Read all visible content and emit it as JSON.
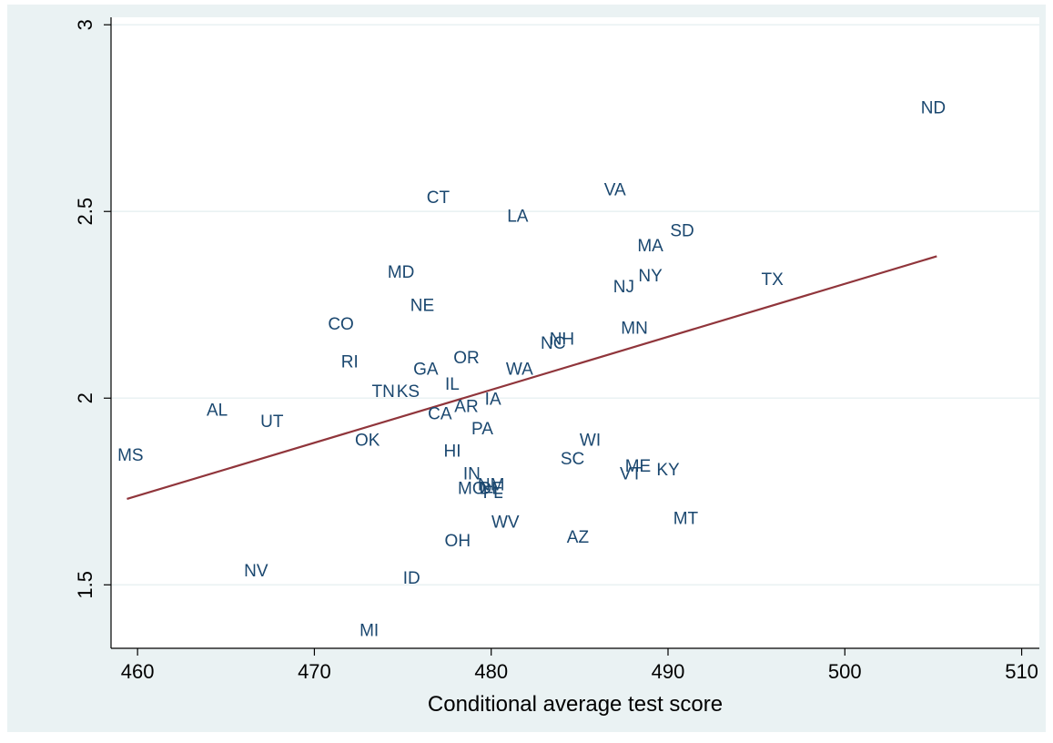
{
  "chart_data": {
    "type": "scatter",
    "title": "",
    "xlabel": "Conditional average test score",
    "ylabel": "",
    "xlim": [
      458.5,
      511
    ],
    "ylim": [
      1.33,
      3.02
    ],
    "xticks": [
      460,
      470,
      480,
      490,
      500,
      510
    ],
    "yticks": [
      1.5,
      2,
      2.5,
      3
    ],
    "xtick_labels": [
      "460",
      "470",
      "480",
      "490",
      "500",
      "510"
    ],
    "ytick_labels": [
      "1.5",
      "2",
      "2.5",
      "3"
    ],
    "grid": "horizontal",
    "colors": {
      "outer_background": "#eaf2f3",
      "plot_background": "#ffffff",
      "gridline": "#eaf2f3",
      "marker_label": "#1a476f",
      "fit_line": "#90353b"
    },
    "points": [
      {
        "label": "ND",
        "x": 505.0,
        "y": 2.78
      },
      {
        "label": "VA",
        "x": 487.0,
        "y": 2.56
      },
      {
        "label": "CT",
        "x": 477.0,
        "y": 2.54
      },
      {
        "label": "LA",
        "x": 481.5,
        "y": 2.49
      },
      {
        "label": "SD",
        "x": 490.8,
        "y": 2.45
      },
      {
        "label": "MA",
        "x": 489.0,
        "y": 2.41
      },
      {
        "label": "MD",
        "x": 474.9,
        "y": 2.34
      },
      {
        "label": "NY",
        "x": 489.0,
        "y": 2.33
      },
      {
        "label": "TX",
        "x": 495.9,
        "y": 2.32
      },
      {
        "label": "NJ",
        "x": 487.5,
        "y": 2.3
      },
      {
        "label": "NE",
        "x": 476.1,
        "y": 2.25
      },
      {
        "label": "CO",
        "x": 471.5,
        "y": 2.2
      },
      {
        "label": "MN",
        "x": 488.1,
        "y": 2.19
      },
      {
        "label": "NH",
        "x": 484.0,
        "y": 2.16
      },
      {
        "label": "NC",
        "x": 483.5,
        "y": 2.15
      },
      {
        "label": "OR",
        "x": 478.6,
        "y": 2.11
      },
      {
        "label": "RI",
        "x": 472.0,
        "y": 2.1
      },
      {
        "label": "GA",
        "x": 476.3,
        "y": 2.08
      },
      {
        "label": "WA",
        "x": 481.6,
        "y": 2.08
      },
      {
        "label": "IL",
        "x": 477.8,
        "y": 2.04
      },
      {
        "label": "TN",
        "x": 473.9,
        "y": 2.02
      },
      {
        "label": "KS",
        "x": 475.3,
        "y": 2.02
      },
      {
        "label": "IA",
        "x": 480.1,
        "y": 2.0
      },
      {
        "label": "AR",
        "x": 478.6,
        "y": 1.98
      },
      {
        "label": "AL",
        "x": 464.5,
        "y": 1.97
      },
      {
        "label": "CA",
        "x": 477.1,
        "y": 1.96
      },
      {
        "label": "UT",
        "x": 467.6,
        "y": 1.94
      },
      {
        "label": "PA",
        "x": 479.5,
        "y": 1.92
      },
      {
        "label": "WI",
        "x": 485.6,
        "y": 1.89
      },
      {
        "label": "OK",
        "x": 473.0,
        "y": 1.89
      },
      {
        "label": "HI",
        "x": 477.8,
        "y": 1.86
      },
      {
        "label": "MS",
        "x": 459.6,
        "y": 1.85
      },
      {
        "label": "SC",
        "x": 484.6,
        "y": 1.84
      },
      {
        "label": "ME",
        "x": 488.3,
        "y": 1.82
      },
      {
        "label": "KY",
        "x": 490.0,
        "y": 1.81
      },
      {
        "label": "VT",
        "x": 487.9,
        "y": 1.8
      },
      {
        "label": "IN",
        "x": 478.9,
        "y": 1.8
      },
      {
        "label": "NM",
        "x": 480.0,
        "y": 1.77
      },
      {
        "label": "MO",
        "x": 478.9,
        "y": 1.76
      },
      {
        "label": "DE",
        "x": 480.0,
        "y": 1.76
      },
      {
        "label": "FL",
        "x": 480.1,
        "y": 1.75
      },
      {
        "label": "MT",
        "x": 491.0,
        "y": 1.68
      },
      {
        "label": "WV",
        "x": 480.8,
        "y": 1.67
      },
      {
        "label": "AZ",
        "x": 484.9,
        "y": 1.63
      },
      {
        "label": "OH",
        "x": 478.1,
        "y": 1.62
      },
      {
        "label": "NV",
        "x": 466.7,
        "y": 1.54
      },
      {
        "label": "ID",
        "x": 475.5,
        "y": 1.52
      },
      {
        "label": "MI",
        "x": 473.1,
        "y": 1.38
      }
    ],
    "fit_line": {
      "x": [
        459.4,
        505.2
      ],
      "y": [
        1.73,
        2.38
      ]
    }
  }
}
